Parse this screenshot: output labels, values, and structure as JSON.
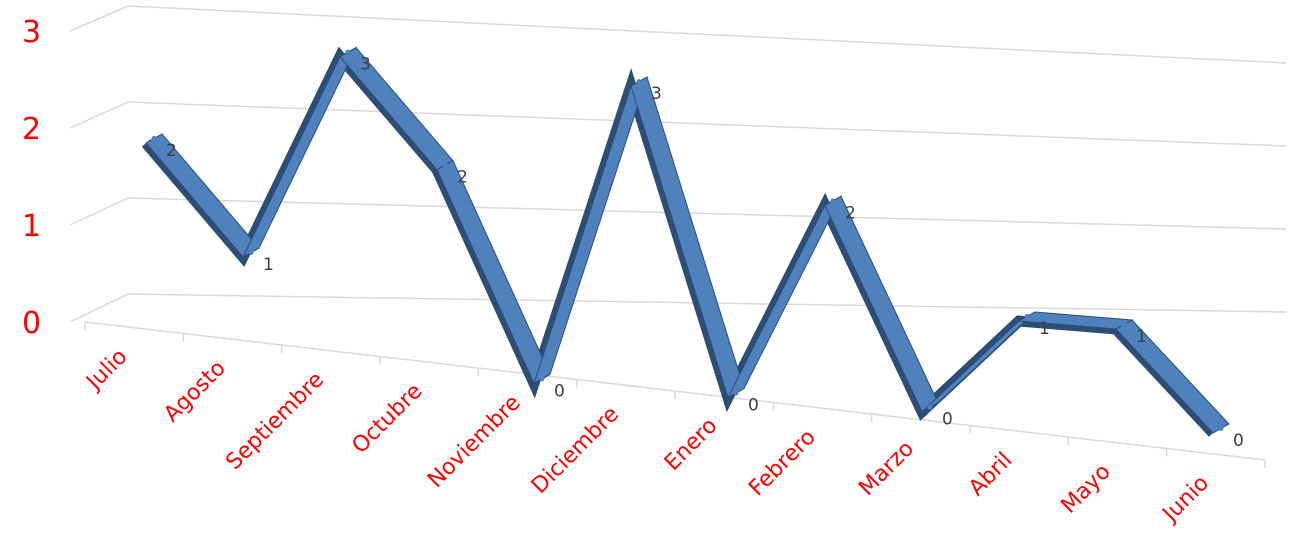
{
  "chart_data": {
    "type": "line",
    "style": "3d-ribbon",
    "categories": [
      "Julio",
      "Agosto",
      "Septiembre",
      "Octubre",
      "Noviembre",
      "Diciembre",
      "Enero",
      "Febrero",
      "Marzo",
      "Abril",
      "Mayo",
      "Junio"
    ],
    "series": [
      {
        "values": [
          2,
          1,
          3,
          2,
          0,
          3,
          0,
          2,
          0,
          1,
          1,
          0
        ]
      }
    ],
    "yticks": [
      "0",
      "1",
      "2",
      "3"
    ],
    "ylim": [
      0,
      3
    ],
    "title": "",
    "xlabel": "",
    "ylabel": "",
    "grid": true,
    "legend": "none",
    "data_labels": true,
    "colors": {
      "series": "#4f81bd",
      "series_dark": "#2c4d75",
      "tick_labels": "#ff0000",
      "data_labels": "#404040",
      "grid": "#d9d9d9"
    }
  }
}
